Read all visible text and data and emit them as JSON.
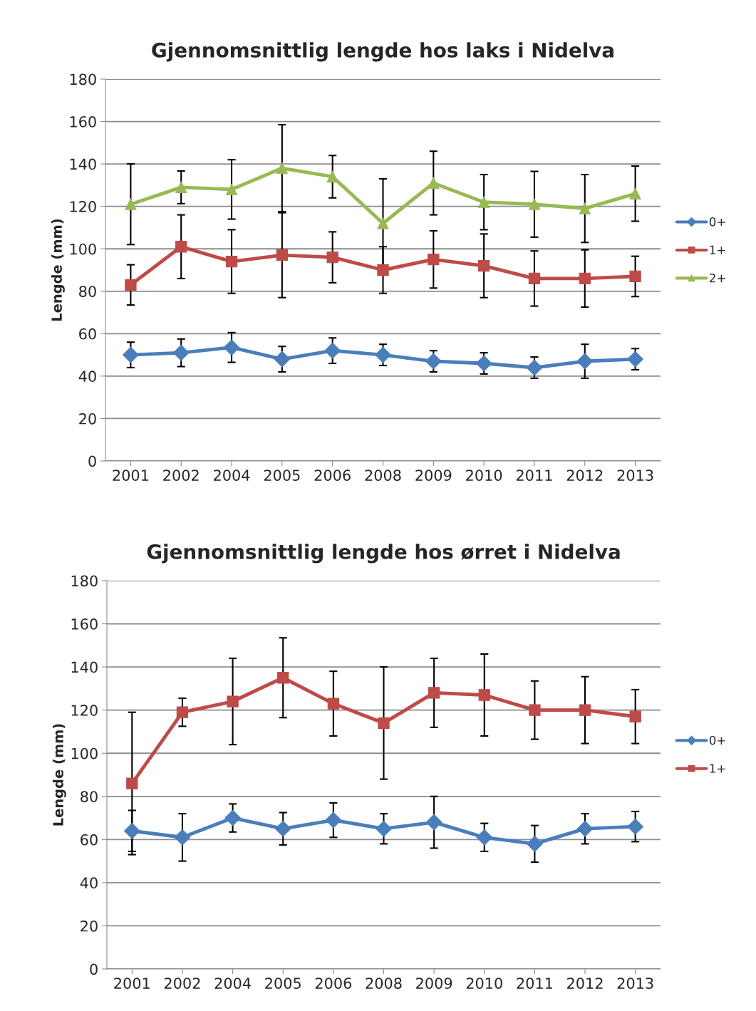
{
  "chart_data": [
    {
      "type": "line",
      "title": "Gjennomsnittlig lengde hos laks i Nidelva",
      "ylabel": "Lengde (mm)",
      "categories": [
        "2001",
        "2002",
        "2004",
        "2005",
        "2006",
        "2008",
        "2009",
        "2010",
        "2011",
        "2012",
        "2013"
      ],
      "series": [
        {
          "name": "0+",
          "color": "#4a7ebb",
          "marker": "diamond",
          "values": [
            50,
            51,
            53.5,
            48,
            52,
            50,
            47,
            46,
            44,
            47,
            48
          ],
          "errors": [
            6,
            6.5,
            7,
            6,
            6,
            5,
            5,
            5,
            5,
            8,
            5
          ]
        },
        {
          "name": "1+",
          "color": "#be4b48",
          "marker": "square",
          "values": [
            83,
            101,
            94,
            97,
            96,
            90,
            95,
            92,
            86,
            86,
            87
          ],
          "errors": [
            9.5,
            15,
            15,
            20,
            12,
            11,
            13.5,
            15,
            13,
            13.5,
            9.5
          ]
        },
        {
          "name": "2+",
          "color": "#98b954",
          "marker": "triangle",
          "values": [
            121,
            129,
            128,
            138,
            134,
            112,
            131,
            122,
            121,
            119,
            126
          ],
          "errors": [
            19,
            7.7,
            14,
            20.5,
            10,
            21,
            15,
            13,
            15.5,
            16,
            13
          ]
        }
      ],
      "ylim": [
        0,
        180
      ],
      "yticks": [
        0,
        20,
        40,
        60,
        80,
        100,
        120,
        140,
        160,
        180
      ],
      "grid": "y",
      "legend": "right"
    },
    {
      "type": "line",
      "title": "Gjennomsnittlig lengde hos ørret i Nidelva",
      "ylabel": "Lengde (mm)",
      "categories": [
        "2001",
        "2002",
        "2004",
        "2005",
        "2006",
        "2008",
        "2009",
        "2010",
        "2011",
        "2012",
        "2013"
      ],
      "series": [
        {
          "name": "0+",
          "color": "#4a7ebb",
          "marker": "diamond",
          "values": [
            64,
            61,
            70,
            65,
            69,
            65,
            68,
            61,
            58,
            65,
            66
          ],
          "errors": [
            9.5,
            11,
            6.5,
            7.5,
            8,
            7,
            12,
            6.5,
            8.5,
            7,
            7
          ]
        },
        {
          "name": "1+",
          "color": "#be4b48",
          "marker": "square",
          "values": [
            86,
            119,
            124,
            135,
            123,
            114,
            128,
            127,
            120,
            120,
            117
          ],
          "errors": [
            33,
            6.5,
            20,
            18.5,
            15,
            26,
            16,
            19,
            13.5,
            15.5,
            12.5
          ]
        }
      ],
      "ylim": [
        0,
        180
      ],
      "yticks": [
        0,
        20,
        40,
        60,
        80,
        100,
        120,
        140,
        160,
        180
      ],
      "grid": "y",
      "legend": "right"
    }
  ]
}
